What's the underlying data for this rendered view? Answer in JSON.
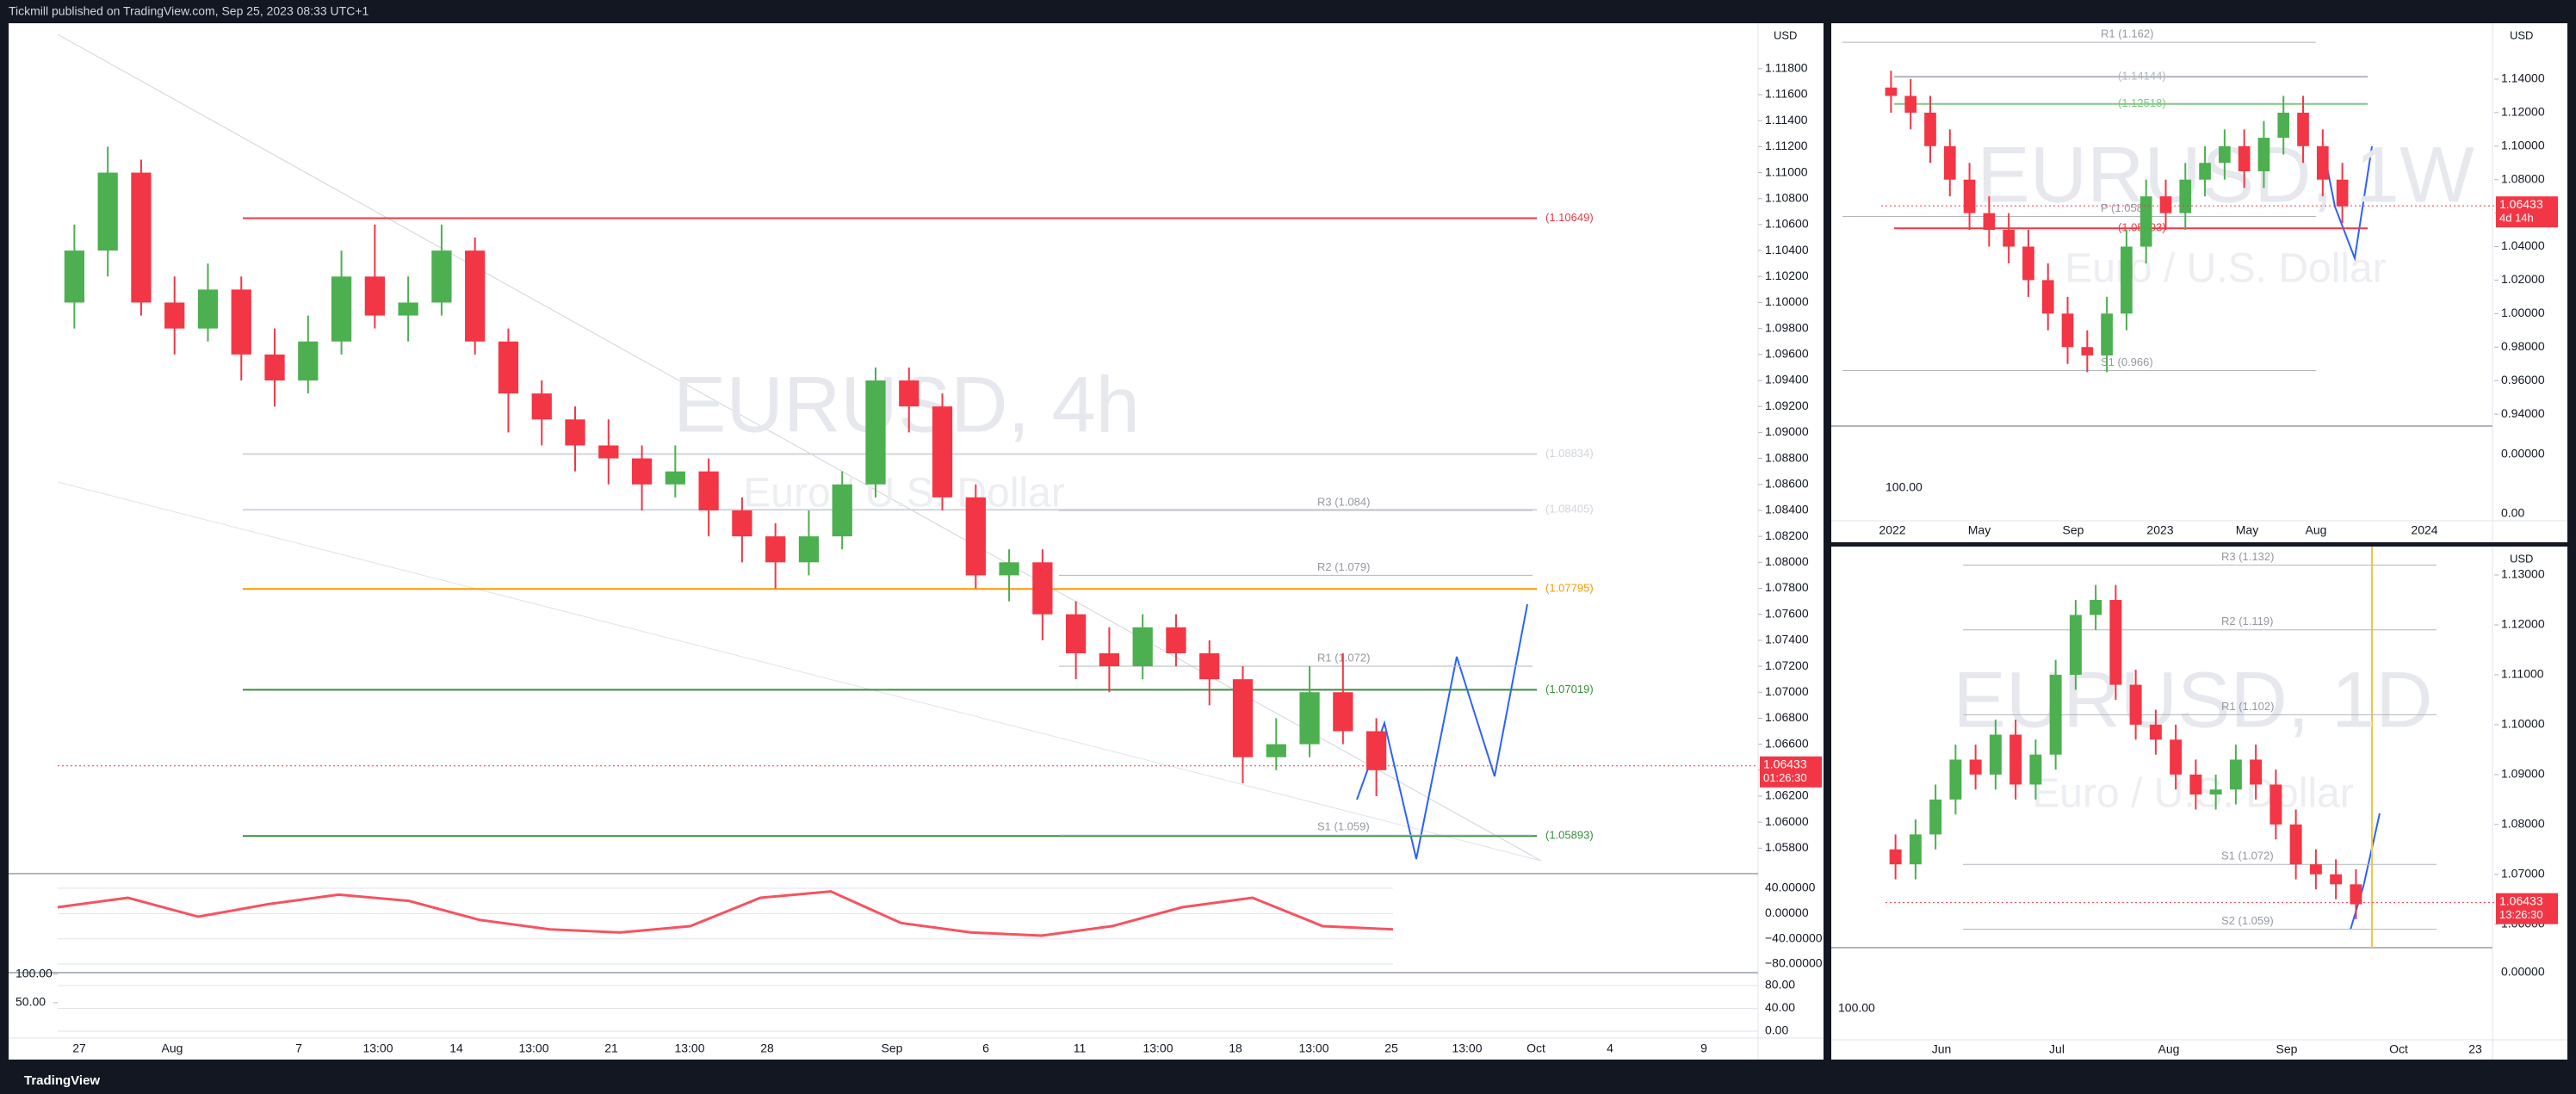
{
  "header": {
    "title": "Tickmill published on TradingView.com, Sep 25, 2023 08:33 UTC+1"
  },
  "footer": {
    "brand": "TradingView"
  },
  "main_chart": {
    "type": "candlestick",
    "currency": "USD",
    "watermark": "EURUSD, 4h",
    "subtitle": "Euro / U.S. Dollar",
    "ylim": [
      1.0563,
      1.1215
    ],
    "price_ticks": [
      {
        "value": 1.118,
        "label": "1.11800"
      },
      {
        "value": 1.116,
        "label": "1.11600"
      },
      {
        "value": 1.114,
        "label": "1.11400"
      },
      {
        "value": 1.112,
        "label": "1.11200"
      },
      {
        "value": 1.11,
        "label": "1.11000"
      },
      {
        "value": 1.108,
        "label": "1.10800"
      },
      {
        "value": 1.106,
        "label": "1.10600"
      },
      {
        "value": 1.104,
        "label": "1.10400"
      },
      {
        "value": 1.102,
        "label": "1.10200"
      },
      {
        "value": 1.1,
        "label": "1.10000"
      },
      {
        "value": 1.098,
        "label": "1.09800"
      },
      {
        "value": 1.096,
        "label": "1.09600"
      },
      {
        "value": 1.094,
        "label": "1.09400"
      },
      {
        "value": 1.092,
        "label": "1.09200"
      },
      {
        "value": 1.09,
        "label": "1.09000"
      },
      {
        "value": 1.088,
        "label": "1.08800"
      },
      {
        "value": 1.086,
        "label": "1.08600"
      },
      {
        "value": 1.084,
        "label": "1.08400"
      },
      {
        "value": 1.082,
        "label": "1.08200"
      },
      {
        "value": 1.08,
        "label": "1.08000"
      },
      {
        "value": 1.078,
        "label": "1.07800"
      },
      {
        "value": 1.076,
        "label": "1.07600"
      },
      {
        "value": 1.074,
        "label": "1.07400"
      },
      {
        "value": 1.072,
        "label": "1.07200"
      },
      {
        "value": 1.07,
        "label": "1.07000"
      },
      {
        "value": 1.068,
        "label": "1.06800"
      },
      {
        "value": 1.066,
        "label": "1.06600"
      },
      {
        "value": 1.064,
        "label": "1.06400"
      },
      {
        "value": 1.062,
        "label": "1.06200"
      },
      {
        "value": 1.06,
        "label": "1.06000"
      },
      {
        "value": 1.058,
        "label": "1.05800"
      }
    ],
    "time_labels": [
      "27",
      "Aug",
      "7",
      "13:00",
      "14",
      "13:00",
      "21",
      "13:00",
      "28",
      "Sep",
      "6",
      "11",
      "13:00",
      "18",
      "13:00",
      "25",
      "13:00",
      "Oct",
      "4",
      "9"
    ],
    "candles": {
      "open": [
        1.1,
        1.104,
        1.11,
        1.1,
        1.098,
        1.101,
        1.096,
        1.094,
        1.097,
        1.102,
        1.099,
        1.1,
        1.104,
        1.097,
        1.093,
        1.091,
        1.089,
        1.088,
        1.086,
        1.087,
        1.084,
        1.082,
        1.08,
        1.082,
        1.086,
        1.094,
        1.092,
        1.085,
        1.079,
        1.08,
        1.076,
        1.073,
        1.072,
        1.075,
        1.073,
        1.071,
        1.065,
        1.066,
        1.07,
        1.067
      ],
      "high": [
        1.106,
        1.112,
        1.111,
        1.102,
        1.103,
        1.102,
        1.098,
        1.099,
        1.104,
        1.106,
        1.102,
        1.106,
        1.105,
        1.098,
        1.094,
        1.092,
        1.091,
        1.089,
        1.089,
        1.088,
        1.085,
        1.083,
        1.084,
        1.087,
        1.095,
        1.095,
        1.093,
        1.086,
        1.081,
        1.081,
        1.077,
        1.075,
        1.076,
        1.076,
        1.074,
        1.072,
        1.068,
        1.072,
        1.073,
        1.068
      ],
      "low": [
        1.098,
        1.102,
        1.099,
        1.096,
        1.097,
        1.094,
        1.092,
        1.093,
        1.096,
        1.098,
        1.097,
        1.099,
        1.096,
        1.09,
        1.089,
        1.087,
        1.086,
        1.084,
        1.085,
        1.082,
        1.08,
        1.078,
        1.079,
        1.081,
        1.085,
        1.09,
        1.084,
        1.078,
        1.077,
        1.074,
        1.071,
        1.07,
        1.071,
        1.072,
        1.069,
        1.063,
        1.064,
        1.065,
        1.066,
        1.062
      ],
      "close": [
        1.104,
        1.11,
        1.1,
        1.098,
        1.101,
        1.096,
        1.094,
        1.097,
        1.102,
        1.099,
        1.1,
        1.104,
        1.097,
        1.093,
        1.091,
        1.089,
        1.088,
        1.086,
        1.087,
        1.084,
        1.082,
        1.08,
        1.082,
        1.086,
        1.094,
        1.092,
        1.085,
        1.079,
        1.08,
        1.076,
        1.073,
        1.072,
        1.075,
        1.073,
        1.071,
        1.065,
        1.066,
        1.07,
        1.067,
        1.064
      ]
    },
    "levels": [
      {
        "price": 1.10649,
        "label": "(1.10649)",
        "color": "#f23645"
      },
      {
        "price": 1.08834,
        "label": "(1.08834)",
        "color": "#d1d4dc"
      },
      {
        "price": 1.08405,
        "label": "(1.08405)",
        "color": "#d1d4dc"
      },
      {
        "price": 1.07795,
        "label": "(1.07795)",
        "color": "#ff9800"
      },
      {
        "price": 1.07019,
        "label": "(1.07019)",
        "color": "#388e3c"
      },
      {
        "price": 1.05893,
        "label": "(1.05893)",
        "color": "#388e3c"
      }
    ],
    "pivots": [
      {
        "price": 1.084,
        "label": "R3 (1.084)"
      },
      {
        "price": 1.079,
        "label": "R2 (1.079)"
      },
      {
        "price": 1.072,
        "label": "R1 (1.072)"
      },
      {
        "price": 1.059,
        "label": "S1 (1.059)"
      }
    ],
    "current_price": 1.06433,
    "countdown": "01:26:30",
    "osc1": {
      "ylim": [
        -93.6,
        63.2
      ],
      "ticks": [
        {
          "value": 40,
          "label": "40.00000"
        },
        {
          "value": 0,
          "label": "0.00000"
        },
        {
          "value": -40,
          "label": "−40.00000"
        },
        {
          "value": -80,
          "label": "−80.00000"
        }
      ],
      "values": [
        10,
        25,
        -5,
        15,
        30,
        20,
        -10,
        -25,
        -30,
        -20,
        25,
        35,
        -15,
        -30,
        -35,
        -20,
        10,
        25,
        -20,
        -25
      ],
      "color": "#f7525f"
    },
    "osc2": {
      "ylim": [
        -12.1,
        102.6
      ],
      "ticks": [
        {
          "value": 80,
          "label": "80.00"
        },
        {
          "value": 40,
          "label": "40.00"
        },
        {
          "value": 0,
          "label": "0.00"
        }
      ],
      "left_ticks": [
        {
          "value": 100,
          "label": "100.00"
        },
        {
          "value": 50,
          "label": "50.00"
        }
      ]
    }
  },
  "weekly_chart": {
    "type": "candlestick",
    "currency": "USD",
    "watermark": "EURUSD, 1W",
    "subtitle": "Euro / U.S. Dollar",
    "ylim": [
      0.9354,
      1.1734
    ],
    "price_ticks": [
      {
        "value": 1.14,
        "label": "1.14000"
      },
      {
        "value": 1.12,
        "label": "1.12000"
      },
      {
        "value": 1.1,
        "label": "1.10000"
      },
      {
        "value": 1.08,
        "label": "1.08000"
      },
      {
        "value": 1.06,
        "label": "1.06000"
      },
      {
        "value": 1.04,
        "label": "1.04000"
      },
      {
        "value": 1.02,
        "label": "1.02000"
      },
      {
        "value": 1,
        "label": "1.00000"
      },
      {
        "value": 0.98,
        "label": "0.98000"
      },
      {
        "value": 0.96,
        "label": "0.96000"
      },
      {
        "value": 0.94,
        "label": "0.94000"
      }
    ],
    "time_labels": [
      "2022",
      "May",
      "Sep",
      "2023",
      "May",
      "Aug",
      "2024"
    ],
    "candles": {
      "open": [
        1.135,
        1.13,
        1.12,
        1.1,
        1.08,
        1.06,
        1.05,
        1.04,
        1.02,
        1.0,
        0.98,
        0.975,
        1.0,
        1.04,
        1.07,
        1.06,
        1.08,
        1.09,
        1.1,
        1.085,
        1.105,
        1.12,
        1.1,
        1.08
      ],
      "high": [
        1.145,
        1.14,
        1.13,
        1.11,
        1.09,
        1.07,
        1.06,
        1.05,
        1.03,
        1.01,
        0.99,
        1.01,
        1.05,
        1.08,
        1.08,
        1.09,
        1.1,
        1.11,
        1.11,
        1.115,
        1.13,
        1.13,
        1.11,
        1.09
      ],
      "low": [
        1.12,
        1.11,
        1.09,
        1.07,
        1.05,
        1.04,
        1.03,
        1.01,
        0.99,
        0.97,
        0.965,
        0.965,
        0.99,
        1.03,
        1.05,
        1.05,
        1.07,
        1.08,
        1.075,
        1.075,
        1.095,
        1.09,
        1.07,
        1.054
      ],
      "close": [
        1.13,
        1.12,
        1.1,
        1.08,
        1.06,
        1.05,
        1.04,
        1.02,
        1.0,
        0.98,
        0.975,
        1.0,
        1.04,
        1.07,
        1.06,
        1.08,
        1.09,
        1.1,
        1.085,
        1.105,
        1.12,
        1.1,
        1.08,
        1.064
      ]
    },
    "levels": [
      {
        "price": 1.14144,
        "label": "(1.14144)",
        "color": "#b2b5be"
      },
      {
        "price": 1.12518,
        "label": "(1.12518)",
        "color": "#81c784"
      },
      {
        "price": 1.05093,
        "label": "(1.05093)",
        "color": "#f23645"
      }
    ],
    "pivots": [
      {
        "price": 1.162,
        "label": "R1 (1.162)"
      },
      {
        "price": 1.058,
        "label": "P (1.058)"
      },
      {
        "price": 0.966,
        "label": "S1 (0.966)"
      }
    ],
    "current_price": 1.06433,
    "countdown": "4d 14h",
    "osc_labels": [
      "0.00000",
      "100.00",
      "0.00"
    ]
  },
  "daily_chart": {
    "type": "candlestick",
    "currency": "USD",
    "watermark": "EURUSD, 1D",
    "subtitle": "Euro / U.S. Dollar",
    "ylim": [
      1.0553,
      1.1357
    ],
    "price_ticks": [
      {
        "value": 1.13,
        "label": "1.13000"
      },
      {
        "value": 1.12,
        "label": "1.12000"
      },
      {
        "value": 1.11,
        "label": "1.11000"
      },
      {
        "value": 1.1,
        "label": "1.10000"
      },
      {
        "value": 1.09,
        "label": "1.09000"
      },
      {
        "value": 1.08,
        "label": "1.08000"
      },
      {
        "value": 1.07,
        "label": "1.07000"
      },
      {
        "value": 1.06,
        "label": "1.06000"
      }
    ],
    "time_labels": [
      "Jun",
      "Jul",
      "Aug",
      "Sep",
      "Oct",
      "23"
    ],
    "candles": {
      "open": [
        1.075,
        1.072,
        1.078,
        1.085,
        1.093,
        1.09,
        1.098,
        1.088,
        1.094,
        1.11,
        1.122,
        1.125,
        1.108,
        1.1,
        1.097,
        1.09,
        1.086,
        1.087,
        1.093,
        1.088,
        1.08,
        1.072,
        1.07,
        1.068
      ],
      "high": [
        1.078,
        1.081,
        1.088,
        1.096,
        1.096,
        1.101,
        1.101,
        1.097,
        1.113,
        1.125,
        1.128,
        1.128,
        1.111,
        1.103,
        1.1,
        1.093,
        1.09,
        1.096,
        1.096,
        1.091,
        1.083,
        1.075,
        1.073,
        1.071
      ],
      "low": [
        1.069,
        1.069,
        1.075,
        1.082,
        1.087,
        1.087,
        1.085,
        1.085,
        1.091,
        1.107,
        1.119,
        1.105,
        1.097,
        1.094,
        1.087,
        1.083,
        1.083,
        1.084,
        1.085,
        1.077,
        1.069,
        1.067,
        1.065,
        1.061
      ],
      "close": [
        1.072,
        1.078,
        1.085,
        1.093,
        1.09,
        1.098,
        1.088,
        1.094,
        1.11,
        1.122,
        1.125,
        1.108,
        1.1,
        1.097,
        1.09,
        1.086,
        1.087,
        1.093,
        1.088,
        1.08,
        1.072,
        1.07,
        1.068,
        1.064
      ]
    },
    "pivots": [
      {
        "price": 1.132,
        "label": "R3 (1.132)"
      },
      {
        "price": 1.119,
        "label": "R2 (1.119)"
      },
      {
        "price": 1.102,
        "label": "R1 (1.102)"
      },
      {
        "price": 1.072,
        "label": "S1 (1.072)"
      },
      {
        "price": 1.059,
        "label": "S2 (1.059)"
      }
    ],
    "current_price": 1.06433,
    "countdown": "13:26:30",
    "osc_labels": [
      "0.00000",
      "100.00"
    ]
  }
}
